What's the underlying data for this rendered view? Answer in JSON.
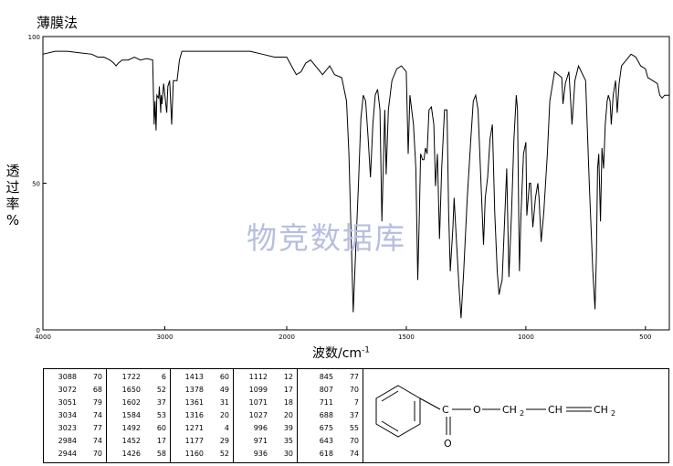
{
  "title": "薄膜法",
  "chart_data": {
    "type": "line",
    "xlabel_main": "波数",
    "xlabel_unit": "/cm",
    "xlabel_exp": "-1",
    "ylabel_chars": [
      "透",
      "过",
      "率",
      "%"
    ],
    "xlim": [
      4000,
      400
    ],
    "ylim": [
      0,
      100
    ],
    "x_ticks": [
      4000,
      3000,
      2000,
      1500,
      1000,
      500
    ],
    "x_tick_labels": [
      "4000",
      "3000",
      "2000",
      "1500",
      "1000",
      "500"
    ],
    "y_ticks": [
      0,
      50,
      100
    ],
    "y_tick_labels": [
      "0",
      "50",
      "100"
    ],
    "series": [
      {
        "points": [
          [
            4000,
            94
          ],
          [
            3900,
            95
          ],
          [
            3800,
            95
          ],
          [
            3700,
            94.5
          ],
          [
            3600,
            94
          ],
          [
            3550,
            93
          ],
          [
            3500,
            93
          ],
          [
            3450,
            92
          ],
          [
            3420,
            91
          ],
          [
            3400,
            90
          ],
          [
            3380,
            91
          ],
          [
            3350,
            92
          ],
          [
            3300,
            92
          ],
          [
            3250,
            93
          ],
          [
            3200,
            92
          ],
          [
            3150,
            92.5
          ],
          [
            3100,
            92
          ],
          [
            3088,
            70
          ],
          [
            3080,
            78
          ],
          [
            3072,
            68
          ],
          [
            3065,
            80
          ],
          [
            3051,
            79
          ],
          [
            3045,
            83
          ],
          [
            3034,
            74
          ],
          [
            3030,
            80
          ],
          [
            3023,
            77
          ],
          [
            3010,
            84
          ],
          [
            2984,
            74
          ],
          [
            2975,
            83
          ],
          [
            2960,
            85
          ],
          [
            2944,
            70
          ],
          [
            2930,
            85
          ],
          [
            2900,
            85
          ],
          [
            2880,
            92
          ],
          [
            2860,
            95
          ],
          [
            2800,
            95
          ],
          [
            2700,
            95
          ],
          [
            2600,
            95
          ],
          [
            2500,
            95
          ],
          [
            2400,
            95
          ],
          [
            2300,
            95
          ],
          [
            2200,
            94
          ],
          [
            2100,
            93
          ],
          [
            2000,
            93
          ],
          [
            1980,
            90
          ],
          [
            1960,
            87
          ],
          [
            1940,
            88
          ],
          [
            1920,
            91
          ],
          [
            1900,
            92
          ],
          [
            1850,
            87
          ],
          [
            1820,
            90
          ],
          [
            1800,
            87
          ],
          [
            1770,
            86
          ],
          [
            1750,
            78
          ],
          [
            1740,
            60
          ],
          [
            1730,
            30
          ],
          [
            1722,
            6
          ],
          [
            1715,
            20
          ],
          [
            1700,
            50
          ],
          [
            1690,
            72
          ],
          [
            1680,
            80
          ],
          [
            1670,
            78
          ],
          [
            1660,
            66
          ],
          [
            1650,
            52
          ],
          [
            1640,
            70
          ],
          [
            1630,
            80
          ],
          [
            1620,
            82
          ],
          [
            1610,
            75
          ],
          [
            1602,
            37
          ],
          [
            1595,
            60
          ],
          [
            1590,
            75
          ],
          [
            1584,
            53
          ],
          [
            1575,
            75
          ],
          [
            1560,
            85
          ],
          [
            1540,
            89
          ],
          [
            1520,
            90
          ],
          [
            1500,
            88
          ],
          [
            1492,
            60
          ],
          [
            1485,
            80
          ],
          [
            1470,
            70
          ],
          [
            1460,
            55
          ],
          [
            1452,
            17
          ],
          [
            1445,
            40
          ],
          [
            1440,
            60
          ],
          [
            1432,
            58
          ],
          [
            1426,
            58
          ],
          [
            1420,
            62
          ],
          [
            1413,
            60
          ],
          [
            1405,
            75
          ],
          [
            1395,
            76
          ],
          [
            1385,
            70
          ],
          [
            1378,
            49
          ],
          [
            1370,
            60
          ],
          [
            1361,
            31
          ],
          [
            1352,
            55
          ],
          [
            1340,
            75
          ],
          [
            1330,
            75
          ],
          [
            1323,
            40
          ],
          [
            1316,
            20
          ],
          [
            1305,
            35
          ],
          [
            1300,
            45
          ],
          [
            1290,
            30
          ],
          [
            1280,
            15
          ],
          [
            1271,
            4
          ],
          [
            1260,
            20
          ],
          [
            1245,
            45
          ],
          [
            1230,
            65
          ],
          [
            1220,
            78
          ],
          [
            1210,
            80
          ],
          [
            1200,
            75
          ],
          [
            1190,
            55
          ],
          [
            1177,
            29
          ],
          [
            1170,
            45
          ],
          [
            1160,
            52
          ],
          [
            1150,
            65
          ],
          [
            1140,
            70
          ],
          [
            1130,
            40
          ],
          [
            1120,
            20
          ],
          [
            1112,
            12
          ],
          [
            1105,
            15
          ],
          [
            1099,
            17
          ],
          [
            1090,
            35
          ],
          [
            1080,
            55
          ],
          [
            1071,
            18
          ],
          [
            1060,
            40
          ],
          [
            1050,
            65
          ],
          [
            1040,
            80
          ],
          [
            1035,
            75
          ],
          [
            1027,
            20
          ],
          [
            1020,
            40
          ],
          [
            1010,
            60
          ],
          [
            1000,
            64
          ],
          [
            996,
            39
          ],
          [
            990,
            45
          ],
          [
            985,
            50
          ],
          [
            980,
            50
          ],
          [
            971,
            35
          ],
          [
            960,
            45
          ],
          [
            950,
            50
          ],
          [
            945,
            45
          ],
          [
            936,
            30
          ],
          [
            925,
            40
          ],
          [
            910,
            60
          ],
          [
            900,
            78
          ],
          [
            880,
            88
          ],
          [
            850,
            86
          ],
          [
            845,
            77
          ],
          [
            835,
            84
          ],
          [
            820,
            88
          ],
          [
            807,
            70
          ],
          [
            795,
            85
          ],
          [
            780,
            90
          ],
          [
            750,
            85
          ],
          [
            735,
            50
          ],
          [
            720,
            20
          ],
          [
            711,
            7
          ],
          [
            705,
            25
          ],
          [
            700,
            55
          ],
          [
            695,
            60
          ],
          [
            688,
            37
          ],
          [
            682,
            62
          ],
          [
            675,
            55
          ],
          [
            668,
            70
          ],
          [
            660,
            78
          ],
          [
            655,
            80
          ],
          [
            648,
            78
          ],
          [
            643,
            70
          ],
          [
            635,
            80
          ],
          [
            625,
            85
          ],
          [
            618,
            74
          ],
          [
            610,
            84
          ],
          [
            600,
            90
          ],
          [
            580,
            92
          ],
          [
            560,
            94
          ],
          [
            540,
            93
          ],
          [
            520,
            90
          ],
          [
            500,
            89
          ],
          [
            490,
            86
          ],
          [
            470,
            85
          ],
          [
            450,
            84
          ],
          [
            440,
            80
          ],
          [
            430,
            79
          ],
          [
            420,
            80
          ],
          [
            400,
            80
          ]
        ]
      }
    ]
  },
  "peak_table": [
    [
      [
        "3088",
        "70"
      ],
      [
        "3072",
        "68"
      ],
      [
        "3051",
        "79"
      ],
      [
        "3034",
        "74"
      ],
      [
        "3023",
        "77"
      ],
      [
        "2984",
        "74"
      ],
      [
        "2944",
        "70"
      ]
    ],
    [
      [
        "1722",
        "6"
      ],
      [
        "1650",
        "52"
      ],
      [
        "1602",
        "37"
      ],
      [
        "1584",
        "53"
      ],
      [
        "1492",
        "60"
      ],
      [
        "1452",
        "17"
      ],
      [
        "1426",
        "58"
      ]
    ],
    [
      [
        "1413",
        "60"
      ],
      [
        "1378",
        "49"
      ],
      [
        "1361",
        "31"
      ],
      [
        "1316",
        "20"
      ],
      [
        "1271",
        "4"
      ],
      [
        "1177",
        "29"
      ],
      [
        "1160",
        "52"
      ]
    ],
    [
      [
        "1112",
        "12"
      ],
      [
        "1099",
        "17"
      ],
      [
        "1071",
        "18"
      ],
      [
        "1027",
        "20"
      ],
      [
        "996",
        "39"
      ],
      [
        "971",
        "35"
      ],
      [
        "936",
        "30"
      ]
    ],
    [
      [
        "845",
        "77"
      ],
      [
        "807",
        "70"
      ],
      [
        "711",
        "7"
      ],
      [
        "688",
        "37"
      ],
      [
        "675",
        "55"
      ],
      [
        "643",
        "70"
      ],
      [
        "618",
        "74"
      ]
    ]
  ],
  "structure": {
    "carbon": "C",
    "oxygen_carbonyl": "O",
    "chain_o": "O",
    "ch2_a": "CH",
    "ch2_a_sub": "2",
    "ch": "CH",
    "ch2_b": "CH",
    "ch2_b_sub": "2"
  }
}
